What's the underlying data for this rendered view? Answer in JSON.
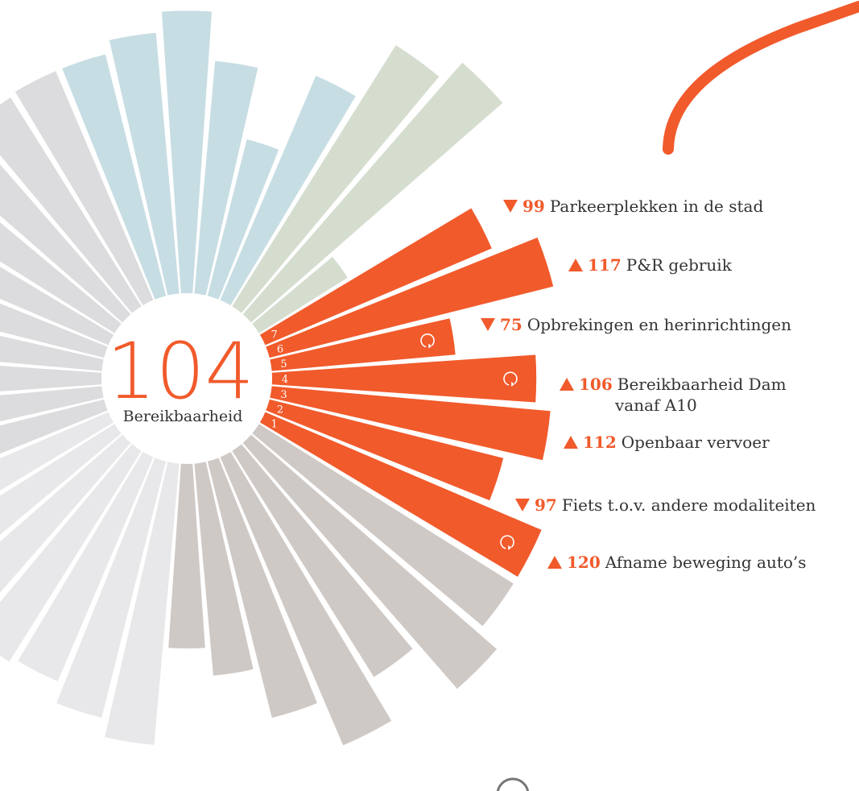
{
  "chart_data": {
    "type": "radial-bar",
    "center_value": 104,
    "center_label": "Bereikbaarheid",
    "highlight_color": "#f15a2b",
    "items": [
      {
        "number": 1,
        "value": 120,
        "direction": "up",
        "refresh_icon": true,
        "label": [
          "Afname beweging auto’s"
        ]
      },
      {
        "number": 2,
        "value": 97,
        "direction": "down",
        "refresh_icon": false,
        "label": [
          "Fiets t.o.v. andere modaliteiten"
        ]
      },
      {
        "number": 3,
        "value": 112,
        "direction": "up",
        "refresh_icon": false,
        "label": [
          "Openbaar vervoer"
        ]
      },
      {
        "number": 4,
        "value": 106,
        "direction": "up",
        "refresh_icon": true,
        "label": [
          "Bereikbaarheid Dam",
          "vanaf A10"
        ]
      },
      {
        "number": 5,
        "value": 75,
        "direction": "down",
        "refresh_icon": true,
        "label": [
          "Opbrekingen en herinrichtingen"
        ]
      },
      {
        "number": 6,
        "value": 117,
        "direction": "up",
        "refresh_icon": false,
        "label": [
          "P&R gebruik"
        ]
      },
      {
        "number": 7,
        "value": 99,
        "direction": "down",
        "refresh_icon": false,
        "label": [
          "Parkeerplekken in de stad"
        ]
      }
    ],
    "other_groups": [
      {
        "color": "#cfc9c6",
        "values": [
          120,
          130,
          107,
          125,
          106,
          86,
          75
        ]
      },
      {
        "color": "#e8e8ea",
        "values": [
          113,
          106,
          98,
          100,
          102,
          100,
          101
        ]
      },
      {
        "color": "#dcdcde",
        "values": [
          100,
          102,
          99,
          101,
          100,
          98,
          102,
          100,
          99,
          100
        ]
      },
      {
        "color": "#c6dde3",
        "values": [
          100,
          105,
          113,
          94,
          66,
          98
        ]
      },
      {
        "color": "#d5ddcf",
        "values": [
          123,
          133,
          44
        ]
      }
    ]
  }
}
